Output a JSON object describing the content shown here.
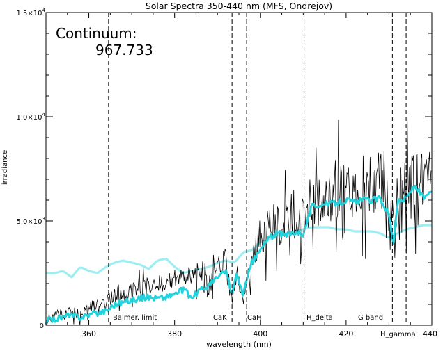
{
  "chart_data": {
    "type": "line",
    "title": "Solar Spectra 350-440 nm (MFS, Ondrejov)",
    "xlabel": "wavelength (nm)",
    "ylabel": "irradiance",
    "xlim": [
      350,
      440
    ],
    "ylim": [
      0,
      15000
    ],
    "x_ticks": [
      360,
      380,
      400,
      420,
      440
    ],
    "y_ticks": [
      {
        "value": 0,
        "mant": "0",
        "exp": ""
      },
      {
        "value": 5000,
        "mant": "5.0×10",
        "exp": "3"
      },
      {
        "value": 10000,
        "mant": "1.0×10",
        "exp": "4"
      },
      {
        "value": 15000,
        "mant": "1.5×10",
        "exp": "4"
      }
    ],
    "annotation": {
      "label": "Continuum:",
      "value": "967.733"
    },
    "markers": [
      {
        "x": 364.6,
        "label": "Balmer. limit"
      },
      {
        "x": 393.4,
        "label": "CaK"
      },
      {
        "x": 396.8,
        "label": "CaH"
      },
      {
        "x": 410.2,
        "label": "H_delta"
      },
      {
        "x": 430.8,
        "label": "G band"
      },
      {
        "x": 434.0,
        "label": "H_gamma"
      }
    ],
    "series": [
      {
        "color": "#000000",
        "noise": "spiky",
        "x": [
          350,
          352,
          354,
          356,
          358,
          360,
          362,
          364,
          366,
          368,
          370,
          372,
          374,
          376,
          378,
          380,
          382,
          384,
          386,
          388,
          390,
          392,
          393.4,
          394.5,
          396,
          396.8,
          398,
          400,
          402,
          404,
          406,
          408,
          410,
          412,
          414,
          416,
          418,
          420,
          422,
          424,
          426,
          428,
          430,
          431,
          432,
          434,
          436,
          438,
          440
        ],
        "y": [
          200,
          500,
          600,
          700,
          500,
          900,
          1000,
          1200,
          1400,
          1500,
          1700,
          1800,
          1900,
          2000,
          2100,
          2200,
          2300,
          2500,
          2500,
          2700,
          2900,
          3000,
          1100,
          2500,
          1000,
          2000,
          3500,
          4200,
          4500,
          4800,
          5000,
          5300,
          5000,
          5800,
          6000,
          6100,
          6300,
          6500,
          6700,
          6800,
          6900,
          7000,
          6800,
          4500,
          6500,
          7000,
          7000,
          7000,
          6900
        ]
      },
      {
        "color": "#22d3de",
        "noise": "smooth",
        "x": [
          350,
          352,
          354,
          356,
          358,
          360,
          362,
          364,
          366,
          368,
          370,
          372,
          374,
          376,
          378,
          380,
          382,
          384,
          386,
          388,
          390,
          392,
          393.4,
          394.5,
          396,
          396.8,
          398,
          400,
          402,
          404,
          406,
          408,
          410,
          412,
          414,
          416,
          418,
          420,
          422,
          424,
          426,
          428,
          430,
          431,
          432,
          434,
          436,
          438,
          440
        ],
        "y": [
          200,
          300,
          400,
          450,
          400,
          500,
          600,
          700,
          1000,
          1100,
          1200,
          1300,
          1350,
          1300,
          1350,
          1500,
          1700,
          1300,
          1700,
          1900,
          2300,
          2600,
          1500,
          2400,
          1500,
          2100,
          3000,
          3600,
          4200,
          4400,
          4300,
          4500,
          4400,
          5700,
          5800,
          5800,
          5900,
          6000,
          5900,
          6000,
          6000,
          6100,
          5300,
          4000,
          5900,
          6100,
          6700,
          6100,
          6300
        ]
      },
      {
        "color": "#9deef2",
        "noise": "none",
        "x": [
          350,
          352,
          354,
          356,
          358,
          360,
          362,
          364,
          366,
          368,
          370,
          372,
          374,
          376,
          378,
          380,
          382,
          384,
          386,
          388,
          390,
          392,
          394,
          396,
          398,
          400,
          402,
          404,
          406,
          408,
          410,
          412,
          414,
          416,
          418,
          420,
          422,
          424,
          426,
          428,
          430,
          432,
          434,
          436,
          438,
          440
        ],
        "y": [
          2500,
          2500,
          2600,
          2300,
          2800,
          2600,
          2500,
          2800,
          3000,
          3100,
          3000,
          2900,
          2700,
          3100,
          3200,
          2800,
          2500,
          2600,
          2700,
          2800,
          3000,
          3100,
          3000,
          3500,
          3600,
          4000,
          4100,
          4300,
          4400,
          4500,
          4600,
          4700,
          4700,
          4700,
          4600,
          4600,
          4500,
          4500,
          4500,
          4400,
          4200,
          4400,
          4600,
          4700,
          4800,
          4800
        ]
      }
    ]
  }
}
